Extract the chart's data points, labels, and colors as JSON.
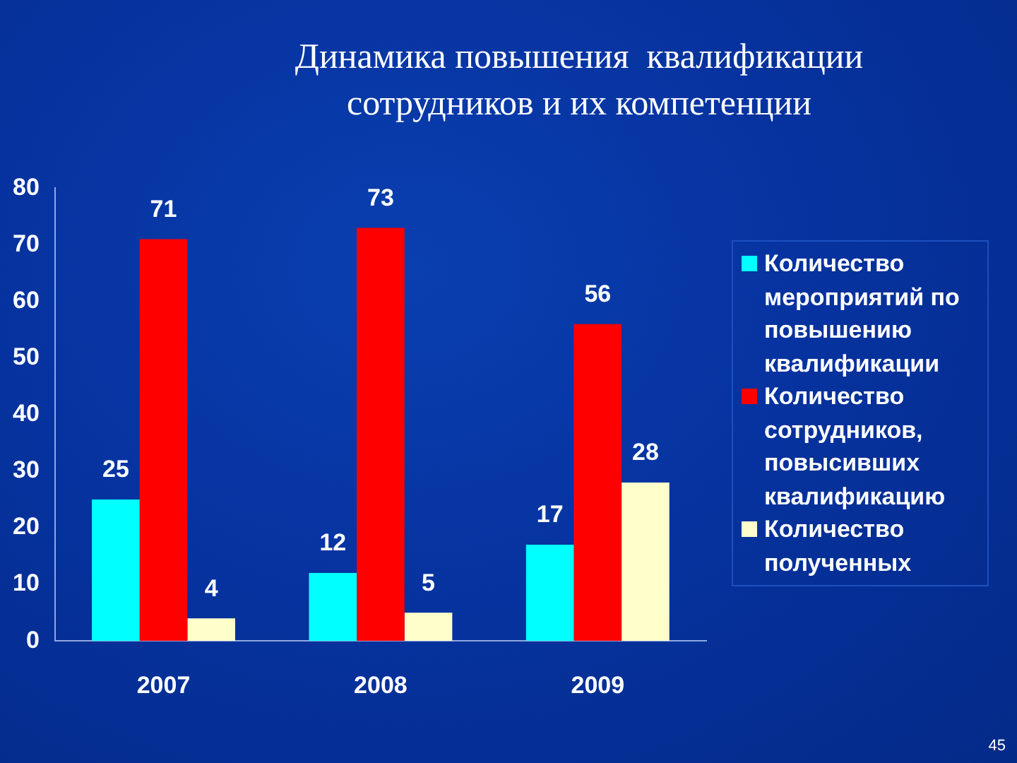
{
  "chart_data": {
    "type": "bar",
    "title": "Динамика повышения  квалификации сотрудников и их компетенции",
    "categories": [
      "2007",
      "2008",
      "2009"
    ],
    "series": [
      {
        "name": "Количество мероприятий по повышению квалификации",
        "color": "#00ffff",
        "values": [
          25,
          12,
          17
        ]
      },
      {
        "name": "Количество сотрудников, повысивших квалификацию",
        "color": "#ff0000",
        "values": [
          71,
          73,
          56
        ]
      },
      {
        "name": "Количество полученных",
        "color": "#ffffcc",
        "values": [
          4,
          5,
          28
        ]
      }
    ],
    "ylim": [
      0,
      80
    ],
    "yticks": [
      0,
      10,
      20,
      30,
      40,
      50,
      60,
      70,
      80
    ],
    "grid": false,
    "legend": "right",
    "data_labels": true,
    "annotations": [
      "45"
    ]
  }
}
